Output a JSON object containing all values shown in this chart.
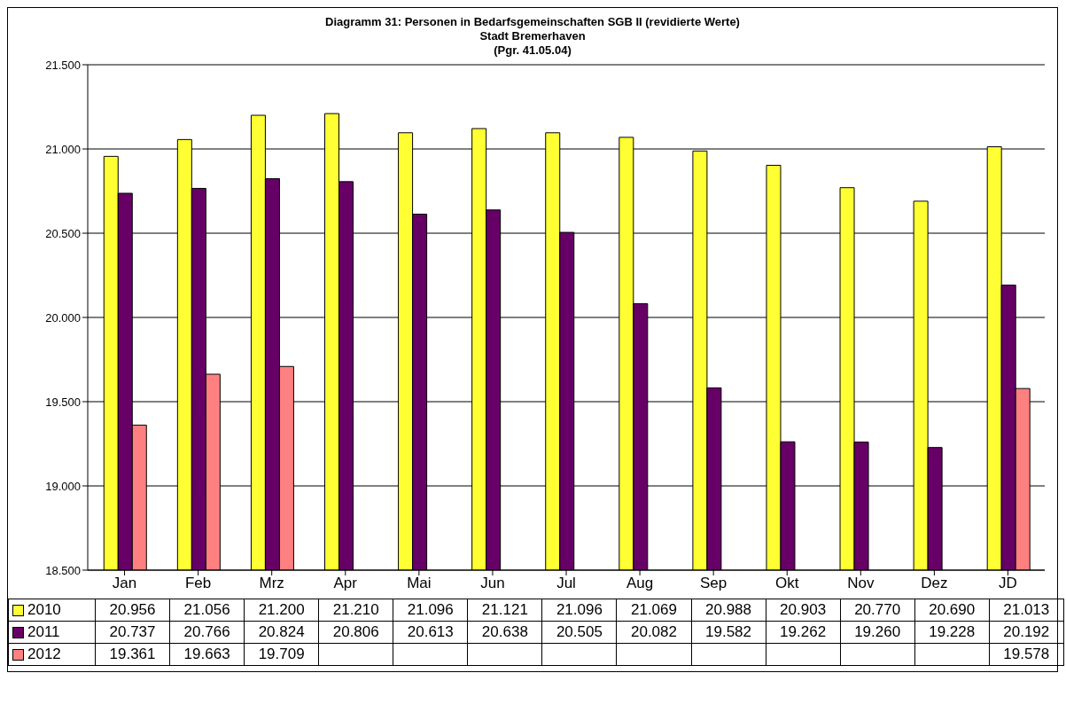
{
  "chart_data": {
    "type": "bar",
    "title": "Diagramm 31: Personen in Bedarfsgemeinschaften SGB II  (revidierte Werte)",
    "subtitle": "Stadt Bremerhaven",
    "annotations": [
      "(Pgr. 41.05.04)"
    ],
    "categories": [
      "Jan",
      "Feb",
      "Mrz",
      "Apr",
      "Mai",
      "Jun",
      "Jul",
      "Aug",
      "Sep",
      "Okt",
      "Nov",
      "Dez",
      "JD"
    ],
    "series": [
      {
        "name": "2010",
        "color": "#ffff33",
        "values": [
          20956,
          21056,
          21200,
          21210,
          21096,
          21121,
          21096,
          21069,
          20988,
          20903,
          20770,
          20690,
          21013
        ],
        "value_labels": [
          "20.956",
          "21.056",
          "21.200",
          "21.210",
          "21.096",
          "21.121",
          "21.096",
          "21.069",
          "20.988",
          "20.903",
          "20.770",
          "20.690",
          "21.013"
        ]
      },
      {
        "name": "2011",
        "color": "#660066",
        "values": [
          20737,
          20766,
          20824,
          20806,
          20613,
          20638,
          20505,
          20082,
          19582,
          19262,
          19260,
          19228,
          20192
        ],
        "value_labels": [
          "20.737",
          "20.766",
          "20.824",
          "20.806",
          "20.613",
          "20.638",
          "20.505",
          "20.082",
          "19.582",
          "19.262",
          "19.260",
          "19.228",
          "20.192"
        ]
      },
      {
        "name": "2012",
        "color": "#ff8080",
        "values": [
          19361,
          19663,
          19709,
          null,
          null,
          null,
          null,
          null,
          null,
          null,
          null,
          null,
          19578
        ],
        "value_labels": [
          "19.361",
          "19.663",
          "19.709",
          null,
          null,
          null,
          null,
          null,
          null,
          null,
          null,
          null,
          "19.578"
        ]
      }
    ],
    "ylim": [
      18500,
      21500
    ],
    "yticks": [
      {
        "value": 18500,
        "label": "18.500"
      },
      {
        "value": 19000,
        "label": "19.000"
      },
      {
        "value": 19500,
        "label": "19.500"
      },
      {
        "value": 20000,
        "label": "20.000"
      },
      {
        "value": 20500,
        "label": "20.500"
      },
      {
        "value": 21000,
        "label": "21.000"
      },
      {
        "value": 21500,
        "label": "21.500"
      }
    ],
    "grid": "y",
    "legend": "bottom"
  }
}
